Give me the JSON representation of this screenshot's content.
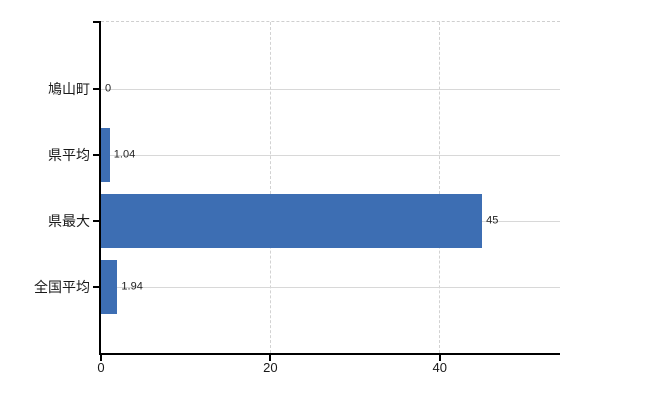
{
  "chart_data": {
    "type": "bar",
    "orientation": "horizontal",
    "title": "",
    "xlabel": "",
    "ylabel": "",
    "categories": [
      "鳩山町",
      "県平均",
      "県最大",
      "全国平均"
    ],
    "values": [
      0,
      1.04,
      45,
      1.94
    ],
    "value_labels": [
      "0",
      "1.04",
      "45",
      "1.94"
    ],
    "xlim": [
      0,
      54.2
    ],
    "xticks": [
      0,
      20,
      40
    ],
    "xtick_labels": [
      "0",
      "20",
      "40"
    ],
    "grid": {
      "vertical_style": "dashed",
      "horizontal_style": "solid",
      "top_border_style": "dashed"
    },
    "legend_position": "none",
    "colors": {
      "bar": "#3d6eb3",
      "grid": "#d8d8d8",
      "axis": "#000000",
      "text": "#1a1a1a"
    }
  }
}
